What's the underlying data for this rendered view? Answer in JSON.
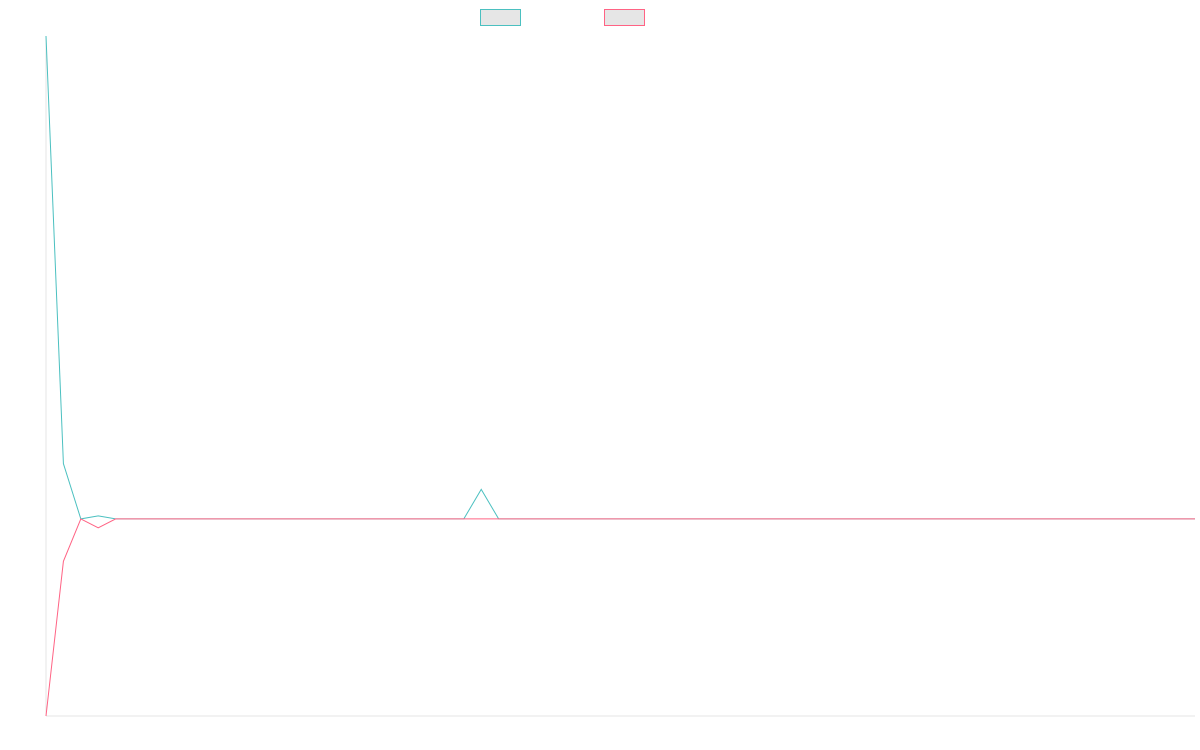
{
  "chart_data": {
    "type": "line",
    "title": "",
    "xlabel": "",
    "ylabel": "",
    "grid": false,
    "legend_position": "top-center",
    "x": [
      0,
      1,
      2,
      3,
      4,
      5,
      6,
      7,
      8,
      9,
      10,
      11,
      12,
      13,
      14,
      15,
      16,
      17,
      18,
      19,
      20,
      21,
      22,
      23,
      24,
      25,
      26,
      27,
      28,
      29,
      30,
      31,
      32,
      33,
      34,
      35,
      36,
      37,
      38,
      39,
      40,
      41,
      42,
      43,
      44,
      45,
      46,
      47,
      48,
      49,
      50,
      51,
      52,
      53,
      54,
      55,
      56,
      57,
      58,
      59,
      60,
      61,
      62,
      63,
      64,
      65,
      66
    ],
    "xlim": [
      0,
      66
    ],
    "ylim": [
      -1,
      2.45
    ],
    "series": [
      {
        "name": "",
        "color": "#4bc0c0",
        "fill": "#e6e6e6",
        "values": [
          2.45,
          0.28,
          0,
          0.015,
          0,
          0,
          0,
          0,
          0,
          0,
          0,
          0,
          0,
          0,
          0,
          0,
          0,
          0,
          0,
          0,
          0,
          0,
          0,
          0,
          0,
          0.15,
          0,
          0,
          0,
          0,
          0,
          0,
          0,
          0,
          0,
          0,
          0,
          0,
          0,
          0,
          0,
          0,
          0,
          0,
          0,
          0,
          0,
          0,
          0,
          0,
          0,
          0,
          0,
          0,
          0,
          0,
          0,
          0,
          0,
          0,
          0,
          0,
          0,
          0,
          0,
          0,
          0
        ]
      },
      {
        "name": "",
        "color": "#ff6384",
        "fill": "#e6e6e6",
        "values": [
          -1,
          -0.215,
          0,
          -0.045,
          0,
          0,
          0,
          0,
          0,
          0,
          0,
          0,
          0,
          0,
          0,
          0,
          0,
          0,
          0,
          0,
          0,
          0,
          0,
          0,
          0,
          0,
          0,
          0,
          0,
          0,
          0,
          0,
          0,
          0,
          0,
          0,
          0,
          0,
          0,
          0,
          0,
          0,
          0,
          0,
          0,
          0,
          0,
          0,
          0,
          0,
          0,
          0,
          0,
          0,
          0,
          0,
          0,
          0,
          0,
          0,
          0,
          0,
          0,
          0,
          0,
          0,
          0
        ]
      }
    ]
  }
}
